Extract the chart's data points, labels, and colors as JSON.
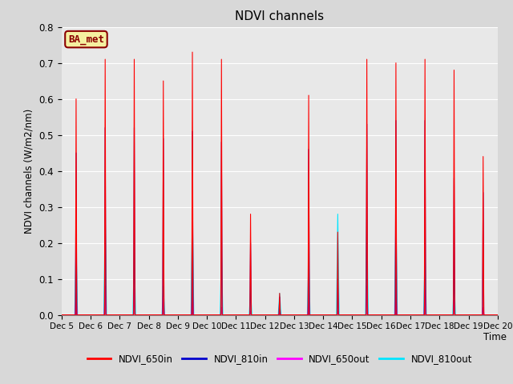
{
  "title": "NDVI channels",
  "ylabel": "NDVI channels (W/m2/nm)",
  "xlabel": "Time",
  "ylim": [
    0.0,
    0.8
  ],
  "bg_color": "#e8e8e8",
  "annotation_text": "BA_met",
  "annotation_bg": "#f5f0a0",
  "annotation_border": "#8b0000",
  "colors": {
    "NDVI_650in": "#ff0000",
    "NDVI_810in": "#0000cc",
    "NDVI_650out": "#ff00ff",
    "NDVI_810out": "#00e5ff"
  },
  "fig_facecolor": "#d8d8d8",
  "xtick_labels": [
    "Dec 5",
    "Dec 6",
    "Dec 7",
    "Dec 8",
    "Dec 9",
    "Dec 10",
    "Dec 11",
    "Dec 12",
    "Dec 13",
    "Dec 14",
    "Dec 15",
    "Dec 16",
    "Dec 17",
    "Dec 18",
    "Dec 19",
    "Dec 20"
  ],
  "peak_650in": [
    0.6,
    0.71,
    0.71,
    0.65,
    0.73,
    0.71,
    0.28,
    0.06,
    0.61,
    0.23,
    0.71,
    0.7,
    0.71,
    0.68,
    0.44
  ],
  "peak_810in": [
    0.45,
    0.52,
    0.52,
    0.49,
    0.51,
    0.48,
    0.2,
    0.05,
    0.46,
    0.1,
    0.53,
    0.54,
    0.54,
    0.38,
    0.34
  ],
  "peak_650out": [
    0.06,
    0.08,
    0.07,
    0.05,
    0.08,
    0.02,
    0.01,
    0.005,
    0.06,
    0.01,
    0.08,
    0.07,
    0.07,
    0.04,
    0.02
  ],
  "peak_810out": [
    0.2,
    0.29,
    0.18,
    0.08,
    0.3,
    0.18,
    0.07,
    0.06,
    0.16,
    0.28,
    0.28,
    0.28,
    0.18,
    0.1,
    0.0
  ]
}
